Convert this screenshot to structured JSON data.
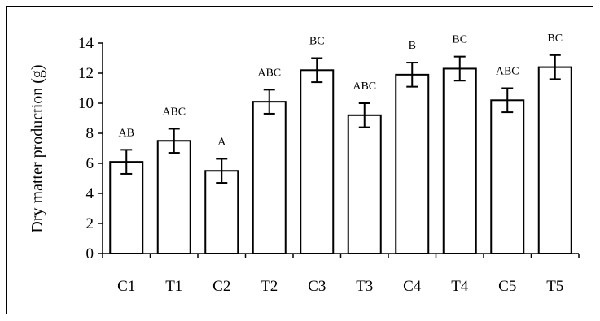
{
  "chart_data": {
    "type": "bar",
    "title": "",
    "xlabel": "",
    "ylabel": "Dry matter production (g)",
    "ylim": [
      0,
      14
    ],
    "yticks": [
      0,
      2,
      4,
      6,
      8,
      10,
      12,
      14
    ],
    "grid": false,
    "legend": "none",
    "categories": [
      "C1",
      "T1",
      "C2",
      "T2",
      "C3",
      "T3",
      "C4",
      "T4",
      "C5",
      "T5"
    ],
    "series": [
      {
        "values": [
          6.1,
          7.5,
          5.5,
          10.1,
          12.2,
          9.2,
          11.9,
          12.3,
          10.2,
          12.4
        ],
        "error": [
          0.8,
          0.8,
          0.8,
          0.8,
          0.8,
          0.8,
          0.8,
          0.8,
          0.8,
          0.8
        ],
        "labels": [
          "AB",
          "ABC",
          "A",
          "ABC",
          "BC",
          "ABC",
          "B",
          "BC",
          "ABC",
          "BC"
        ]
      }
    ],
    "colors": {
      "bar_fill": "#ffffff",
      "bar_stroke": "#000000"
    }
  }
}
